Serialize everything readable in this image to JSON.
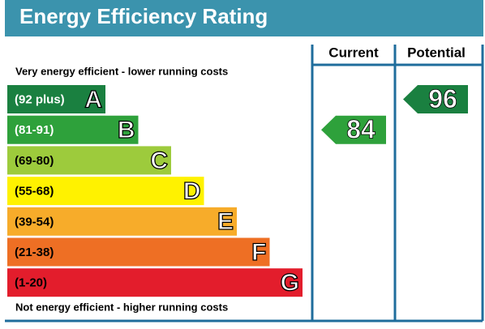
{
  "title": "Energy Efficiency Rating",
  "headers": {
    "current": "Current",
    "potential": "Potential"
  },
  "top_note": "Very energy efficient - lower running costs",
  "bottom_note": "Not energy efficient - higher running costs",
  "bands": [
    {
      "range": "(92 plus)",
      "letter": "A",
      "color": "#1a8040",
      "text_color": "#ffffff"
    },
    {
      "range": "(81-91)",
      "letter": "B",
      "color": "#2ea13b",
      "text_color": "#ffffff"
    },
    {
      "range": "(69-80)",
      "letter": "C",
      "color": "#9dcb3c",
      "text_color": "#000000"
    },
    {
      "range": "(55-68)",
      "letter": "D",
      "color": "#fff200",
      "text_color": "#000000"
    },
    {
      "range": "(39-54)",
      "letter": "E",
      "color": "#f7ac2a",
      "text_color": "#000000"
    },
    {
      "range": "(21-38)",
      "letter": "F",
      "color": "#ee6f24",
      "text_color": "#000000"
    },
    {
      "range": "(1-20)",
      "letter": "G",
      "color": "#e31d2c",
      "text_color": "#000000"
    }
  ],
  "current": {
    "value": 84
  },
  "potential": {
    "value": 96
  }
}
